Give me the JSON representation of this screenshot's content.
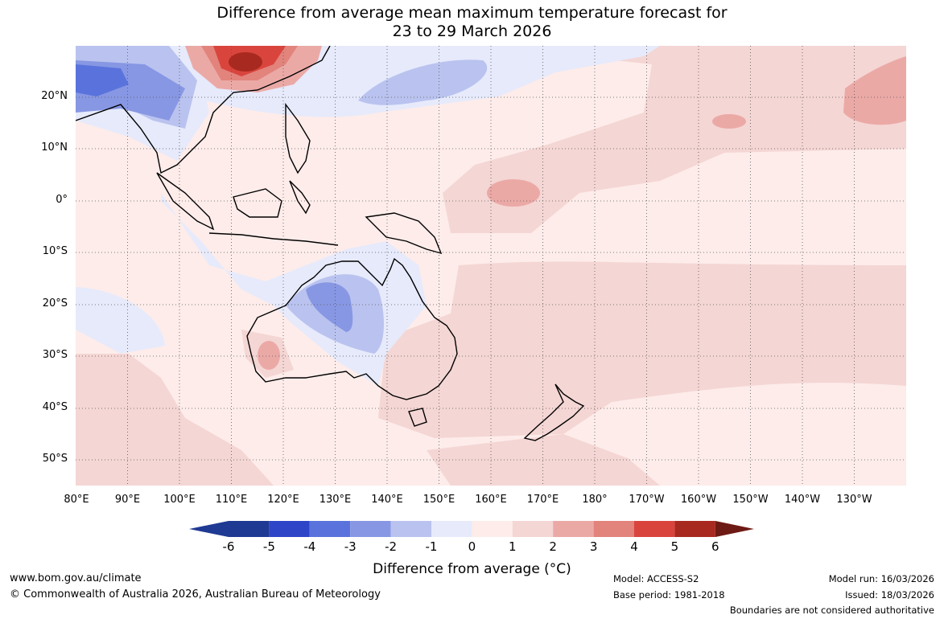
{
  "title": {
    "line1": "Difference from average mean maximum temperature forecast for",
    "line2": "23 to 29 March 2026"
  },
  "map": {
    "region": "Indo-Pacific / Australia",
    "lat_labels": [
      "20°N",
      "10°N",
      "0°",
      "10°S",
      "20°S",
      "30°S",
      "40°S",
      "50°S"
    ],
    "lon_labels": [
      "80°E",
      "90°E",
      "100°E",
      "110°E",
      "120°E",
      "130°E",
      "140°E",
      "150°E",
      "160°E",
      "170°E",
      "180°",
      "170°W",
      "160°W",
      "150°W",
      "140°W",
      "130°W"
    ]
  },
  "colorbar": {
    "ticks": [
      "-6",
      "-5",
      "-4",
      "-3",
      "-2",
      "-1",
      "0",
      "1",
      "2",
      "3",
      "4",
      "5",
      "6"
    ],
    "colors": [
      "#1f3a93",
      "#2f45c8",
      "#5a73dc",
      "#8797e3",
      "#bac3ef",
      "#e6eafb",
      "#fdecea",
      "#f4d6d4",
      "#eba9a6",
      "#e2837c",
      "#d9453d",
      "#a8291f",
      "#6e1a14"
    ],
    "label": "Difference from average (°C)"
  },
  "footer": {
    "website": "www.bom.gov.au/climate",
    "copyright": "© Commonwealth of Australia 2026, Australian Bureau of Meteorology",
    "model": "Model: ACCESS-S2",
    "base_period": "Base period: 1981-2018",
    "model_run": "Model run: 16/03/2026",
    "issued": "Issued: 18/03/2026",
    "disclaimer": "Boundaries are not considered authoritative"
  }
}
